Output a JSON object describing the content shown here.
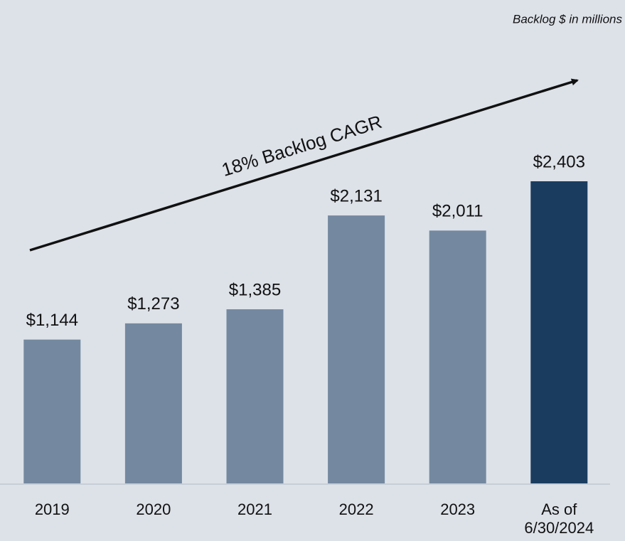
{
  "chart_data": {
    "type": "bar",
    "subtitle": "Backlog $ in millions",
    "annotation": "18% Backlog CAGR",
    "categories": [
      "2019",
      "2020",
      "2021",
      "2022",
      "2023",
      "As of\n6/30/2024"
    ],
    "values": [
      1144,
      1273,
      1385,
      2131,
      2011,
      2403
    ],
    "value_labels": [
      "$1,144",
      "$1,273",
      "$1,385",
      "$2,131",
      "$2,011",
      "$2,403"
    ],
    "colors": [
      "#7489a0",
      "#7489a0",
      "#7489a0",
      "#7489a0",
      "#7489a0",
      "#1a3d5f"
    ]
  }
}
